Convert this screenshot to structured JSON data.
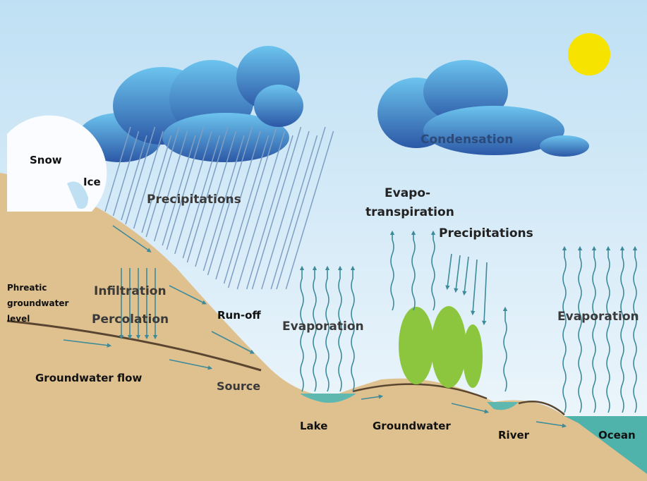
{
  "labels": {
    "snow": "Snow",
    "ice": "Ice",
    "precipitations_left": "Precipitations",
    "condensation": "Condensation",
    "evapotranspiration": [
      "Evapo-",
      "transpiration"
    ],
    "precipitations_right": "Precipitations",
    "phreatic_groundwater_level": [
      "Phreatic",
      "groundwater",
      "level"
    ],
    "infiltration": "Infiltration",
    "percolation": "Percolation",
    "run_off": "Run-off",
    "evaporation_lake": "Evaporation",
    "evaporation_ocean": "Evaporation",
    "groundwater_flow": "Groundwater flow",
    "source": "Source",
    "lake": "Lake",
    "groundwater": "Groundwater",
    "river": "River",
    "ocean": "Ocean"
  }
}
